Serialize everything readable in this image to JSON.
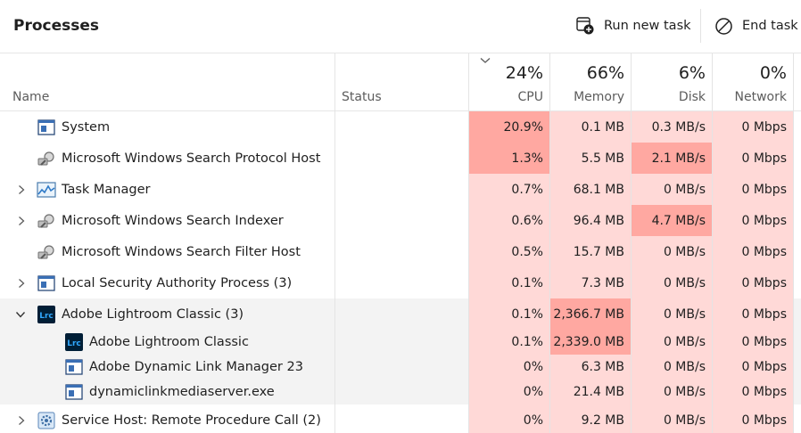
{
  "window": {
    "title": "Processes"
  },
  "toolbar": {
    "run_new_task": "Run new task",
    "end_task": "End task"
  },
  "columns": {
    "name": "Name",
    "status": "Status",
    "cpu": {
      "percent": "24%",
      "label": "CPU"
    },
    "memory": {
      "percent": "66%",
      "label": "Memory"
    },
    "disk": {
      "percent": "6%",
      "label": "Disk"
    },
    "network": {
      "percent": "0%",
      "label": "Network"
    }
  },
  "colors": {
    "heat_low": "#ffd9d7",
    "heat_high": "#ffa8a1",
    "network_bg": "#ffd9d7",
    "group_bg": "#f3f3f3"
  },
  "rows": [
    {
      "name": "System",
      "icon": "system-window-icon",
      "expandable": false,
      "cpu": "20.9%",
      "memory": "0.1 MB",
      "disk": "0.3 MB/s",
      "network": "0 Mbps",
      "hot": [
        "cpu"
      ]
    },
    {
      "name": "Microsoft Windows Search Protocol Host",
      "icon": "search-service-icon",
      "expandable": false,
      "cpu": "1.3%",
      "memory": "5.5 MB",
      "disk": "2.1 MB/s",
      "network": "0 Mbps",
      "hot": [
        "cpu",
        "disk"
      ]
    },
    {
      "name": "Task Manager",
      "icon": "task-manager-icon",
      "expandable": true,
      "cpu": "0.7%",
      "memory": "68.1 MB",
      "disk": "0 MB/s",
      "network": "0 Mbps",
      "hot": []
    },
    {
      "name": "Microsoft Windows Search Indexer",
      "icon": "search-service-icon",
      "expandable": true,
      "cpu": "0.6%",
      "memory": "96.4 MB",
      "disk": "4.7 MB/s",
      "network": "0 Mbps",
      "hot": [
        "disk"
      ]
    },
    {
      "name": "Microsoft Windows Search Filter Host",
      "icon": "search-service-icon",
      "expandable": false,
      "cpu": "0.5%",
      "memory": "15.7 MB",
      "disk": "0 MB/s",
      "network": "0 Mbps",
      "hot": []
    },
    {
      "name": "Local Security Authority Process (3)",
      "icon": "system-window-icon",
      "expandable": true,
      "cpu": "0.1%",
      "memory": "7.3 MB",
      "disk": "0 MB/s",
      "network": "0 Mbps",
      "hot": []
    },
    {
      "name": "Adobe Lightroom Classic (3)",
      "icon": "lightroom-icon",
      "expandable": true,
      "expanded": true,
      "group": true,
      "cpu": "0.1%",
      "memory": "2,366.7 MB",
      "disk": "0 MB/s",
      "network": "0 Mbps",
      "hot": [
        "memory"
      ]
    },
    {
      "name": "Adobe Lightroom Classic",
      "icon": "lightroom-icon",
      "child": true,
      "group": true,
      "cpu": "0.1%",
      "memory": "2,339.0 MB",
      "disk": "0 MB/s",
      "network": "0 Mbps",
      "hot": [
        "memory"
      ]
    },
    {
      "name": "Adobe Dynamic Link Manager 23",
      "icon": "system-window-icon",
      "child": true,
      "group": true,
      "cpu": "0%",
      "memory": "6.3 MB",
      "disk": "0 MB/s",
      "network": "0 Mbps",
      "hot": []
    },
    {
      "name": "dynamiclinkmediaserver.exe",
      "icon": "system-window-icon",
      "child": true,
      "group": true,
      "cpu": "0%",
      "memory": "21.4 MB",
      "disk": "0 MB/s",
      "network": "0 Mbps",
      "hot": []
    },
    {
      "name": "Service Host: Remote Procedure Call (2)",
      "icon": "gear-service-icon",
      "expandable": true,
      "cpu": "0%",
      "memory": "9.2 MB",
      "disk": "0 MB/s",
      "network": "0 Mbps",
      "hot": []
    }
  ]
}
